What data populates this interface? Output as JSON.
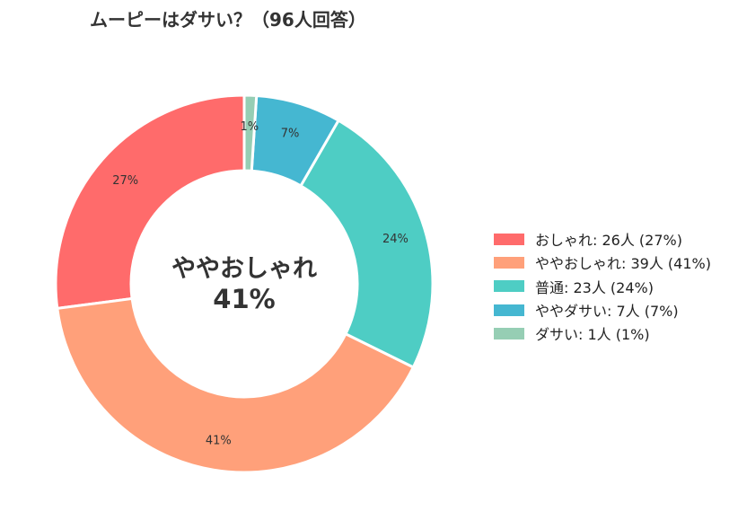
{
  "title": "ムーピーはダサい？（96人回答）",
  "center": {
    "label": "ややおしゃれ",
    "value": "41%"
  },
  "chart_data": {
    "type": "pie",
    "title": "ムーピーはダサい？（96人回答）",
    "total": 96,
    "donut": true,
    "legend_position": "right",
    "slices": [
      {
        "name": "おしゃれ",
        "count": 26,
        "percent": 27,
        "color": "#FF6B6B",
        "legend_label": "おしゃれ:  26人 (27%)",
        "data_label": "27%"
      },
      {
        "name": "ややおしゃれ",
        "count": 39,
        "percent": 41,
        "color": "#FFA07A",
        "legend_label": "ややおしゃれ:  39人 (41%)",
        "data_label": "41%"
      },
      {
        "name": "普通",
        "count": 23,
        "percent": 24,
        "color": "#4ECDC4",
        "legend_label": "普通:  23人 (24%)",
        "data_label": "24%"
      },
      {
        "name": "ややダサい",
        "count": 7,
        "percent": 7,
        "color": "#45B7D1",
        "legend_label": "ややダサい:  7人 (7%)",
        "data_label": "7%"
      },
      {
        "name": "ダサい",
        "count": 1,
        "percent": 1,
        "color": "#96CEB4",
        "legend_label": "ダサい:  1人 (1%)",
        "data_label": "1%"
      }
    ]
  }
}
